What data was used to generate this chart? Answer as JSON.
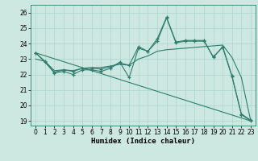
{
  "xlabel": "Humidex (Indice chaleur)",
  "background_color": "#cce8e0",
  "grid_color": "#aad4cc",
  "line_color": "#2e7d6e",
  "xlim": [
    -0.5,
    23.5
  ],
  "ylim": [
    18.7,
    26.5
  ],
  "yticks": [
    19,
    20,
    21,
    22,
    23,
    24,
    25,
    26
  ],
  "xticks": [
    0,
    1,
    2,
    3,
    4,
    5,
    6,
    7,
    8,
    9,
    10,
    11,
    12,
    13,
    14,
    15,
    16,
    17,
    18,
    19,
    20,
    21,
    22,
    23
  ],
  "line1_x": [
    0,
    1,
    2,
    3,
    4,
    5,
    6,
    7,
    8,
    9,
    10,
    11,
    12,
    13,
    14,
    15,
    16,
    17,
    18,
    19,
    20,
    21,
    22,
    23
  ],
  "line1_y": [
    23.4,
    22.8,
    22.1,
    22.2,
    22.0,
    22.3,
    22.3,
    22.2,
    22.4,
    22.8,
    21.8,
    23.7,
    23.5,
    24.3,
    25.7,
    24.1,
    24.2,
    24.2,
    24.2,
    23.1,
    23.8,
    21.9,
    19.4,
    19.0
  ],
  "line2_x": [
    0,
    1,
    2,
    3,
    4,
    5,
    6,
    7,
    8,
    9,
    10,
    11,
    12,
    13,
    14,
    15,
    16,
    17,
    18,
    19,
    20,
    21,
    22,
    23
  ],
  "line2_y": [
    23.4,
    22.85,
    22.15,
    22.3,
    22.2,
    22.4,
    22.4,
    22.35,
    22.5,
    22.75,
    22.6,
    23.8,
    23.5,
    24.15,
    25.65,
    24.05,
    24.15,
    24.15,
    24.15,
    23.15,
    23.75,
    21.85,
    19.45,
    19.05
  ],
  "line3_x": [
    0,
    1,
    2,
    3,
    4,
    5,
    6,
    7,
    8,
    9,
    10,
    11,
    12,
    13,
    14,
    15,
    16,
    17,
    18,
    19,
    20,
    21,
    22,
    23
  ],
  "line3_y": [
    23.0,
    22.85,
    22.25,
    22.3,
    22.25,
    22.4,
    22.45,
    22.45,
    22.55,
    22.65,
    22.6,
    23.0,
    23.2,
    23.5,
    23.6,
    23.65,
    23.7,
    23.75,
    23.8,
    23.85,
    23.9,
    23.1,
    21.8,
    19.0
  ],
  "line4_x": [
    0,
    23
  ],
  "line4_y": [
    23.4,
    19.0
  ]
}
